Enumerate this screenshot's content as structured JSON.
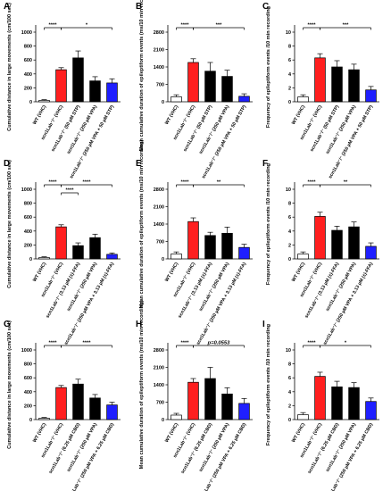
{
  "colors": {
    "wt": "#ffffff",
    "vhc": "#ff1f1f",
    "drug": "#000000",
    "combo": "#1f1fff"
  },
  "chart_data": [
    {
      "type": "bar",
      "panel": "A",
      "ylabel": "Cumulative distance in large movements (cm/100 sec)",
      "ylim": [
        0,
        1000
      ],
      "yticks": [
        0,
        200,
        400,
        600,
        800,
        1000
      ],
      "categories": [
        "WT (VHC)",
        "scn1Lab⁻/⁻ (VHC)",
        "scn1Lab⁻/⁻ (50 µM STP)",
        "scn1Lab⁻/⁻ (250 µM VPA)",
        "scn1Lab⁻/⁻ (250 µM VPA + 50 µM STP)"
      ],
      "values": [
        20,
        460,
        630,
        300,
        270
      ],
      "errors": [
        10,
        30,
        100,
        60,
        60
      ],
      "significance": [
        {
          "from": 0,
          "to": 1,
          "label": "****",
          "tier": 0
        },
        {
          "from": 1,
          "to": 4,
          "label": "*",
          "tier": 0
        }
      ]
    },
    {
      "type": "bar",
      "panel": "B",
      "ylabel": "Mean cumulative duration of epileptiform events (ms/10 min recording)",
      "ylim": [
        0,
        2800
      ],
      "yticks": [
        0,
        700,
        1400,
        2100,
        2800
      ],
      "categories": [
        "WT (VHC)",
        "scn1Lab⁻/⁻ (VHC)",
        "scn1Lab⁻/⁻ (50 µM STP)",
        "scn1Lab⁻/⁻ (250 µM VPA)",
        "scn1Lab⁻/⁻ (250 µM VPA + 50 µM STP)"
      ],
      "values": [
        200,
        1580,
        1230,
        1020,
        220
      ],
      "errors": [
        80,
        150,
        350,
        250,
        100
      ],
      "significance": [
        {
          "from": 0,
          "to": 1,
          "label": "****",
          "tier": 0
        },
        {
          "from": 1,
          "to": 4,
          "label": "***",
          "tier": 0
        }
      ]
    },
    {
      "type": "bar",
      "panel": "C",
      "ylabel": "Frequency of epileptiform events /10 min recording",
      "ylim": [
        0,
        10
      ],
      "yticks": [
        0,
        2,
        4,
        6,
        8,
        10
      ],
      "categories": [
        "WT (VHC)",
        "scn1Lab⁻/⁻ (VHC)",
        "scn1Lab⁻/⁻ (50 µM STP)",
        "scn1Lab⁻/⁻ (250 µM VPA)",
        "scn1Lab⁻/⁻ (250 µM VPA + 50 µM STP)"
      ],
      "values": [
        0.7,
        6.3,
        5.0,
        4.6,
        1.7
      ],
      "errors": [
        0.3,
        0.6,
        0.9,
        0.8,
        0.5
      ],
      "significance": [
        {
          "from": 0,
          "to": 1,
          "label": "****",
          "tier": 0
        },
        {
          "from": 1,
          "to": 4,
          "label": "***",
          "tier": 0
        }
      ]
    },
    {
      "type": "bar",
      "panel": "D",
      "ylabel": "Cumulative distance in large movements (cm/100 sec)",
      "ylim": [
        0,
        1000
      ],
      "yticks": [
        0,
        200,
        400,
        600,
        800,
        1000
      ],
      "categories": [
        "WT (VHC)",
        "scn1Lab⁻/⁻ (VHC)",
        "scn1Lab⁻/⁻ (3.13 µM (±)-FFA)",
        "scn1Lab⁻/⁻ (250 µM VPA)",
        "scn1Lab⁻/⁻ (250 µM VPA + 3.13 µM (±)-FFA)"
      ],
      "values": [
        20,
        460,
        190,
        305,
        65
      ],
      "errors": [
        10,
        30,
        40,
        50,
        20
      ],
      "significance": [
        {
          "from": 0,
          "to": 1,
          "label": "****",
          "tier": 0
        },
        {
          "from": 1,
          "to": 4,
          "label": "****",
          "tier": 0
        },
        {
          "from": 1,
          "to": 2,
          "label": "****",
          "tier": 1
        }
      ]
    },
    {
      "type": "bar",
      "panel": "E",
      "ylabel": "Mean cumulative duration of epileptiform events (ms/10 min recording)",
      "ylim": [
        0,
        2800
      ],
      "yticks": [
        0,
        700,
        1400,
        2100,
        2800
      ],
      "categories": [
        "WT (VHC)",
        "scn1Lab⁻/⁻ (VHC)",
        "scn1Lab⁻/⁻ (3.13 µM (±)-FFA)",
        "scn1Lab⁻/⁻ (250 µM VPA)",
        "scn1Lab⁻/⁻ (250 µM VPA + 3.13 µM (±)-FFA)"
      ],
      "values": [
        200,
        1500,
        940,
        1030,
        460
      ],
      "errors": [
        80,
        150,
        130,
        250,
        130
      ],
      "significance": [
        {
          "from": 0,
          "to": 1,
          "label": "****",
          "tier": 0
        },
        {
          "from": 1,
          "to": 4,
          "label": "**",
          "tier": 0
        }
      ]
    },
    {
      "type": "bar",
      "panel": "F",
      "ylabel": "Frequency of epileptiform events /10 min recording",
      "ylim": [
        0,
        10
      ],
      "yticks": [
        0,
        2,
        4,
        6,
        8,
        10
      ],
      "categories": [
        "WT (VHC)",
        "scn1Lab⁻/⁻ (VHC)",
        "scn1Lab⁻/⁻ (3.13 µM (±)-FFA)",
        "scn1Lab⁻/⁻ (250 µM VPA)",
        "scn1Lab⁻/⁻ (250 µM VPA + 3.13 µM (±)-FFA)"
      ],
      "values": [
        0.7,
        6.1,
        4.1,
        4.6,
        1.8
      ],
      "errors": [
        0.3,
        0.6,
        0.6,
        0.7,
        0.5
      ],
      "significance": [
        {
          "from": 0,
          "to": 1,
          "label": "****",
          "tier": 0
        },
        {
          "from": 1,
          "to": 4,
          "label": "**",
          "tier": 0
        }
      ]
    },
    {
      "type": "bar",
      "panel": "G",
      "ylabel": "Cumulative distance in large movements (cm/100 sec)",
      "ylim": [
        0,
        1000
      ],
      "yticks": [
        0,
        200,
        400,
        600,
        800,
        1000
      ],
      "categories": [
        "WT (VHC)",
        "scn1Lab⁻/⁻ (VHC)",
        "scn1Lab⁻/⁻ (6.25 µM CBD)",
        "scn1Lab⁻/⁻ (250 µM VPA)",
        "scn1Lab⁻/⁻ (250 µM VPA + 6.25 µM CBD)"
      ],
      "values": [
        20,
        460,
        510,
        310,
        210
      ],
      "errors": [
        10,
        30,
        70,
        50,
        40
      ],
      "significance": [
        {
          "from": 0,
          "to": 1,
          "label": "****",
          "tier": 0
        },
        {
          "from": 1,
          "to": 4,
          "label": "****",
          "tier": 0
        }
      ]
    },
    {
      "type": "bar",
      "panel": "H",
      "ylabel": "Mean cumulative duration of epileptiform events (ms/10 min recording)",
      "ylim": [
        0,
        2800
      ],
      "yticks": [
        0,
        700,
        1400,
        2100,
        2800
      ],
      "categories": [
        "WT (VHC)",
        "scn1Lab⁻/⁻ (VHC)",
        "scn1Lab⁻/⁻ (6.25 µM CBD)",
        "scn1Lab⁻/⁻ (250 µM VPA)",
        "scn1Lab⁻/⁻ (250 µM VPA + 6.25 µM CBD)"
      ],
      "values": [
        180,
        1500,
        1650,
        1030,
        650
      ],
      "errors": [
        70,
        150,
        450,
        250,
        200
      ],
      "significance": [
        {
          "from": 0,
          "to": 1,
          "label": "****",
          "tier": 0
        },
        {
          "from": 1,
          "to": 4,
          "label": "p=0.0553",
          "tier": 0,
          "italic": true
        }
      ]
    },
    {
      "type": "bar",
      "panel": "I",
      "ylabel": "Frequency of epileptiform events /10 min recording",
      "ylim": [
        0,
        10
      ],
      "yticks": [
        0,
        2,
        4,
        6,
        8,
        10
      ],
      "categories": [
        "WT (VHC)",
        "scn1Lab⁻/⁻ (VHC)",
        "scn1Lab⁻/⁻ (6.25 µM CBD)",
        "scn1Lab⁻/⁻ (250 µM VPA)",
        "scn1Lab⁻/⁻ (250 µM VPA + 6.25 µM CBD)"
      ],
      "values": [
        0.7,
        6.2,
        4.7,
        4.6,
        2.6
      ],
      "errors": [
        0.3,
        0.6,
        0.8,
        0.7,
        0.5
      ],
      "significance": [
        {
          "from": 0,
          "to": 1,
          "label": "****",
          "tier": 0
        },
        {
          "from": 1,
          "to": 4,
          "label": "*",
          "tier": 0
        }
      ]
    }
  ]
}
